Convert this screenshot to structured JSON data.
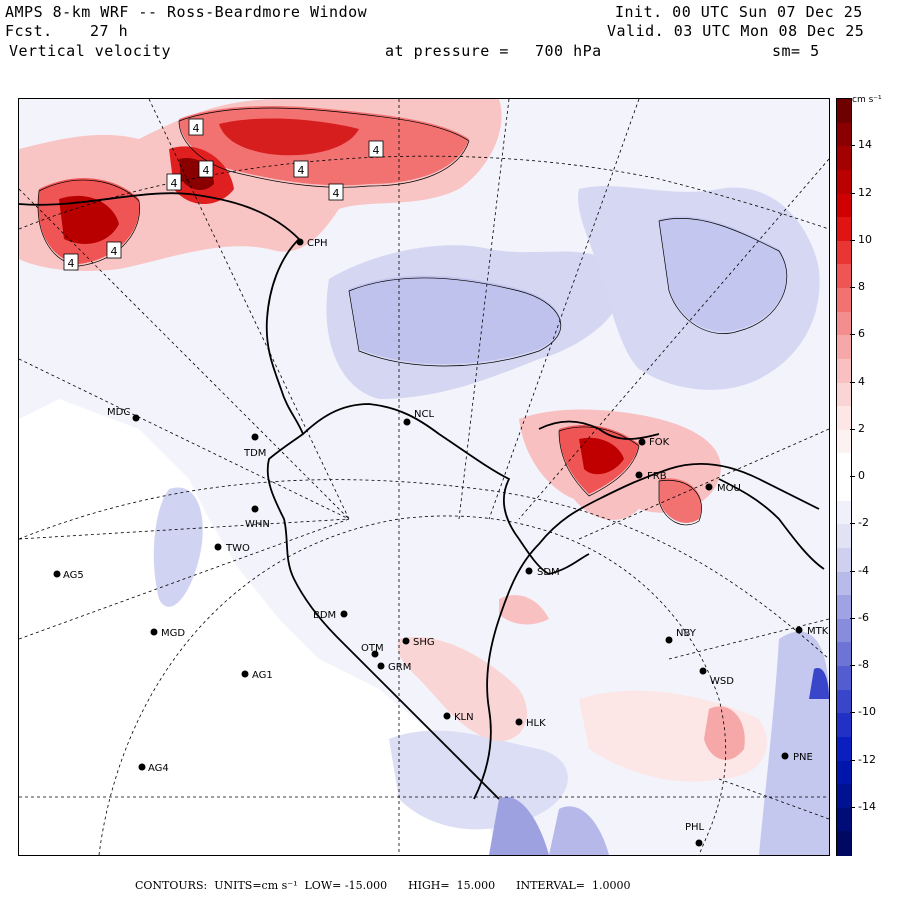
{
  "header": {
    "model": "AMPS 8-km WRF -- Ross-Beardmore Window",
    "init": "Init. 00 UTC Sun 07 Dec 25",
    "fcst_label": "Fcst.",
    "fcst_value": "27 h",
    "valid": "Valid. 03 UTC Mon 08 Dec 25",
    "variable": "Vertical velocity",
    "pressure_label": "at pressure =",
    "pressure_value": "700 hPa",
    "smoothing": "sm= 5"
  },
  "colorbar": {
    "units": "cm s⁻¹",
    "labels": [
      "14",
      "12",
      "10",
      "8",
      "6",
      "4",
      "2",
      "0",
      "-2",
      "-4",
      "-6",
      "-8",
      "-10",
      "-12",
      "-14"
    ],
    "label_values": [
      14,
      12,
      10,
      8,
      6,
      4,
      2,
      0,
      -2,
      -4,
      -6,
      -8,
      -10,
      -12,
      -14
    ],
    "range": [
      -16,
      16
    ],
    "colors_top_to_bottom": [
      "#6e0000",
      "#8a0000",
      "#a30000",
      "#bb0000",
      "#d00000",
      "#e11414",
      "#ea3535",
      "#ef5555",
      "#f27272",
      "#f48e8e",
      "#f6a8a8",
      "#f8c0c0",
      "#fad5d5",
      "#fce6e6",
      "#fdf2f2",
      "#ffffff",
      "#ffffff",
      "#f0f0fa",
      "#e2e2f5",
      "#cfd0f0",
      "#b8baea",
      "#9fa3e3",
      "#878ddc",
      "#6d74d6",
      "#545dd0",
      "#3a46ca",
      "#2131c5",
      "#0b1fc0",
      "#0016ab",
      "#001191",
      "#000c78",
      "#000862"
    ]
  },
  "stations": [
    {
      "id": "CPH"
    },
    {
      "id": "MDC"
    },
    {
      "id": "TDM"
    },
    {
      "id": "NCL"
    },
    {
      "id": "FOK"
    },
    {
      "id": "FRB"
    },
    {
      "id": "MOU"
    },
    {
      "id": "WHN"
    },
    {
      "id": "TWO"
    },
    {
      "id": "AG5"
    },
    {
      "id": "SDM"
    },
    {
      "id": "BDM"
    },
    {
      "id": "MGD"
    },
    {
      "id": "OTM"
    },
    {
      "id": "SHG"
    },
    {
      "id": "GRM"
    },
    {
      "id": "NBY"
    },
    {
      "id": "MTK"
    },
    {
      "id": "AG1"
    },
    {
      "id": "WSD"
    },
    {
      "id": "KLN"
    },
    {
      "id": "HLK"
    },
    {
      "id": "AG4"
    },
    {
      "id": "PNE"
    },
    {
      "id": "PHL"
    }
  ],
  "contour_labels": [
    "4",
    "4",
    "4",
    "4",
    "4",
    "4",
    "4",
    "4"
  ],
  "footer": {
    "contours_label": "CONTOURS:",
    "units_label": "UNITS=cm s⁻¹",
    "low_label": "LOW=",
    "low_value": "-15.000",
    "high_label": "HIGH=",
    "high_value": "15.000",
    "interval_label": "INTERVAL=",
    "interval_value": "1.0000"
  }
}
